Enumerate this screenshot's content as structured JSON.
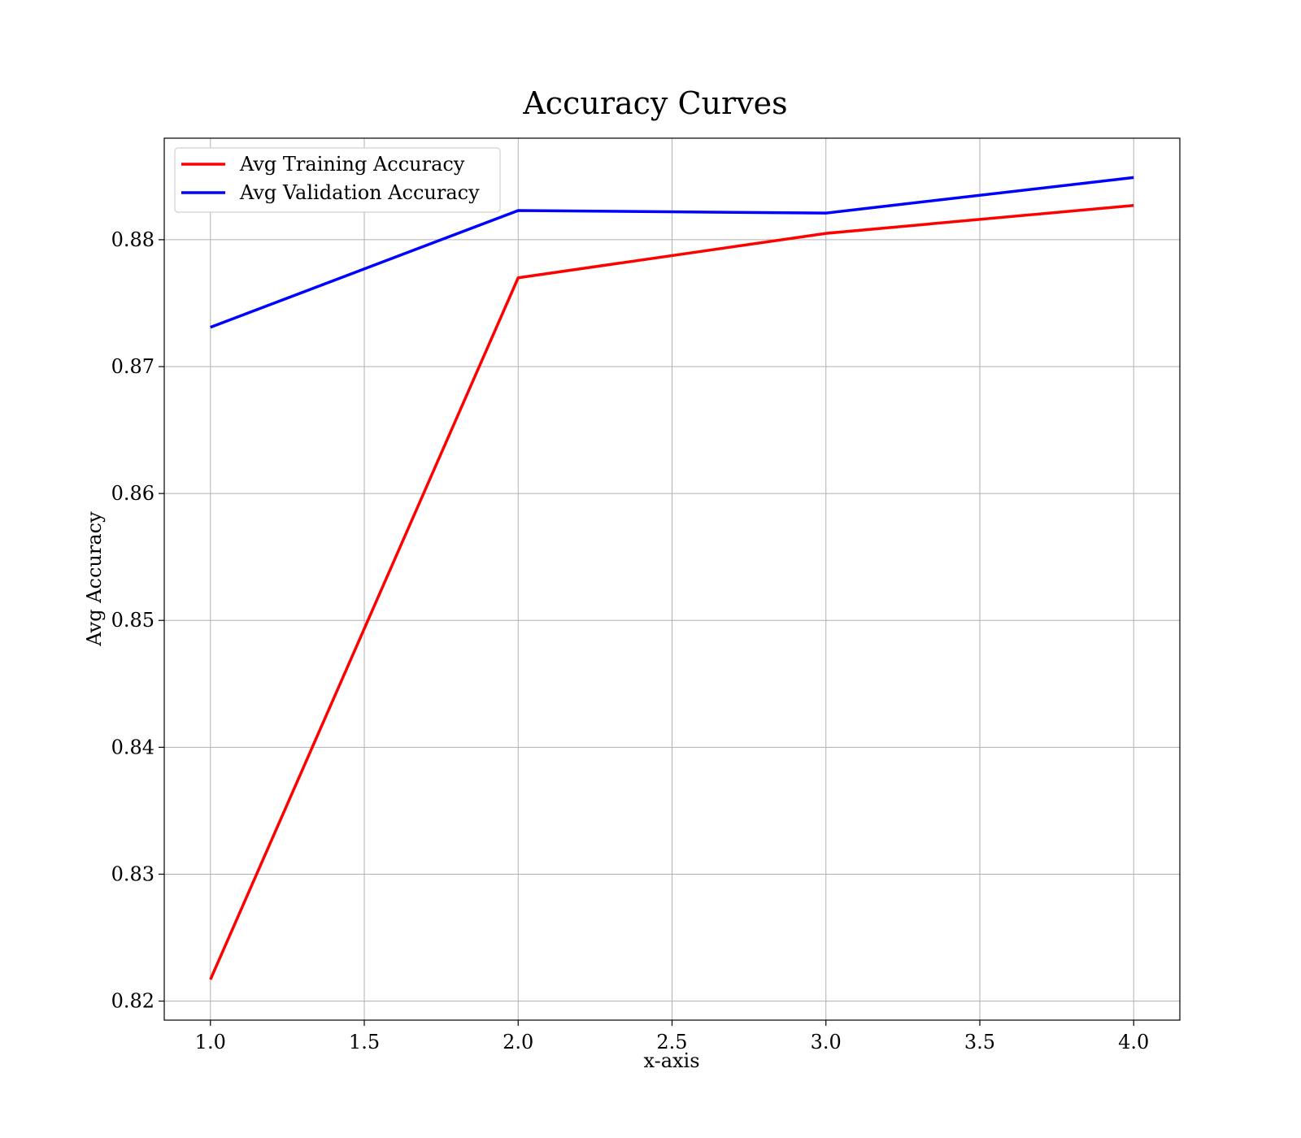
{
  "chart_data": {
    "type": "line",
    "title": "Accuracy Curves",
    "xlabel": "x-axis",
    "ylabel": "Avg Accuracy",
    "xlim": [
      0.85,
      4.15
    ],
    "ylim": [
      0.8185,
      0.888
    ],
    "x_ticks": [
      1.0,
      1.5,
      2.0,
      2.5,
      3.0,
      3.5,
      4.0
    ],
    "x_tick_labels": [
      "1.0",
      "1.5",
      "2.0",
      "2.5",
      "3.0",
      "3.5",
      "4.0"
    ],
    "y_ticks": [
      0.82,
      0.83,
      0.84,
      0.85,
      0.86,
      0.87,
      0.88
    ],
    "y_tick_labels": [
      "0.82",
      "0.83",
      "0.84",
      "0.85",
      "0.86",
      "0.87",
      "0.88"
    ],
    "grid": true,
    "legend_position": "top-left",
    "x": [
      1.0,
      2.0,
      3.0,
      4.0
    ],
    "series": [
      {
        "name": "Avg Training Accuracy",
        "color": "#ff0000",
        "values": [
          0.8217,
          0.877,
          0.8805,
          0.8827
        ]
      },
      {
        "name": "Avg Validation Accuracy",
        "color": "#0000ff",
        "values": [
          0.8731,
          0.8823,
          0.8821,
          0.8849
        ]
      }
    ]
  }
}
